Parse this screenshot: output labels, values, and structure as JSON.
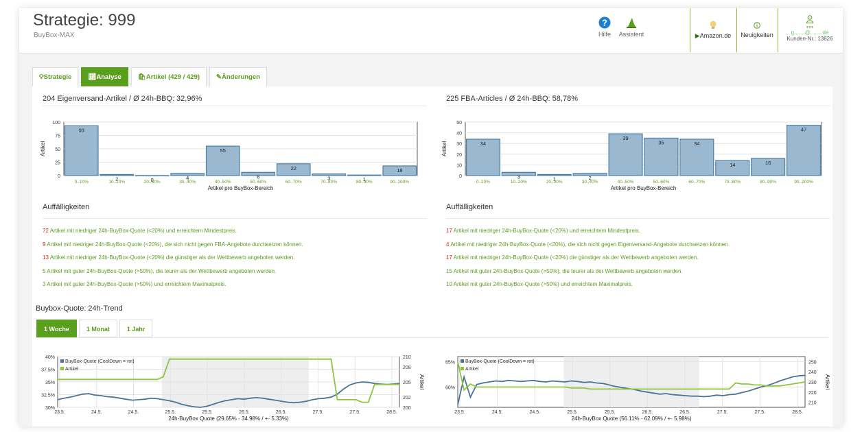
{
  "header": {
    "title": "Strategie: 999",
    "subtitle": "BuyBox-MAX",
    "help_label": "Hilfe",
    "assistant_label": "Assistent",
    "marketplace_label": "Amazon.de",
    "news_label": "Neuigkeiten",
    "user_email": "g.......@........de",
    "customer_label": "Kunden-Nr.: 13826"
  },
  "tabs": [
    "Strategie",
    "Analyse",
    "Artikel (429 / 429)",
    "Änderungen"
  ],
  "left": {
    "heading": "204 Eigenversand-Artikel / Ø 24h-BBQ: 32,96%",
    "issues_heading": "Auffälligkeiten",
    "issues": [
      {
        "num": "72",
        "text": " Artikel mit niedriger 24h-BuyBox-Quote (<20%) und erreichtem Mindestpreis.",
        "red": true
      },
      {
        "num": "9",
        "text": " Artikel mit niedriger 24h-BuyBox-Quote (<20%), die sich nicht gegen FBA-Angebote durchsetzen können.",
        "red": true
      },
      {
        "num": "13",
        "text": " Artikel mit niedriger 24h-BuyBox-Quote (<20%) die günstiger als der Wettbewerb angeboten werden.",
        "red": true
      },
      {
        "num": "5",
        "text": " Artikel mit guter 24h-BuyBox-Quote (>50%), die teurer als der Wettbewerb angeboten werden.",
        "red": false
      },
      {
        "num": "3",
        "text": " Artikel mit guter 24h-BuyBox-Quote (>50%) und erreichtem Maximalpreis.",
        "red": false
      }
    ]
  },
  "right": {
    "heading": "225 FBA-Articles / Ø 24h-BBQ: 58,78%",
    "issues_heading": "Auffälligkeiten",
    "issues": [
      {
        "num": "17",
        "text": " Artikel mit niedriger 24h-BuyBox-Quote (<20%) und erreichtem Mindestpreis.",
        "red": true
      },
      {
        "num": "4",
        "text": " Artikel mit niedriger 24h-BuyBox-Quote (<20%), die sich nicht gegen Eigenversand-Angebote durchsetzen können.",
        "red": true
      },
      {
        "num": "17",
        "text": " Artikel mit niedriger 24h-BuyBox-Quote (<20%) die günstiger als der Wettbewerb angeboten werden.",
        "red": true
      },
      {
        "num": "15",
        "text": " Artikel mit guter 24h-BuyBox-Quote (>50%), die teurer als der Wettbewerb angeboten werden.",
        "red": false
      },
      {
        "num": "10",
        "text": " Artikel mit guter 24h-BuyBox-Quote (>50%) und erreichtem Maximalpreis.",
        "red": false
      }
    ]
  },
  "trend": {
    "heading": "Buybox-Quote: 24h-Trend",
    "ranges": [
      "1 Woche",
      "1 Monat",
      "1 Jahr"
    ],
    "active_range": "1 Woche"
  },
  "colors": {
    "accent": "#5a9e1e",
    "bar_fill": "#9ab9d0",
    "bar_stroke": "#4d7ea3",
    "line_blue": "#4d7396",
    "line_green": "#8cc63f",
    "red": "#d9230f"
  },
  "chart_data": [
    {
      "type": "bar",
      "title": "",
      "xlabel": "Artikel pro BuyBox-Bereich",
      "ylabel": "Artikel",
      "categories": [
        "0..10%",
        "10..20%",
        "20..30%",
        "30..40%",
        "40..50%",
        "50..60%",
        "60..70%",
        "70..80%",
        "80..90%",
        "90..100%"
      ],
      "values": [
        93,
        2,
        0,
        4,
        55,
        6,
        22,
        3,
        1,
        18
      ],
      "ylim": [
        0,
        100
      ],
      "yticks": [
        0,
        25,
        50,
        75,
        100
      ]
    },
    {
      "type": "bar",
      "title": "",
      "xlabel": "Artikel pro BuyBox-Bereich",
      "ylabel": "Artikel",
      "categories": [
        "0..10%",
        "10..20%",
        "20..30%",
        "30..40%",
        "40..50%",
        "50..60%",
        "60..70%",
        "70..80%",
        "80..90%",
        "90..100%"
      ],
      "values": [
        34,
        3,
        1,
        2,
        39,
        35,
        34,
        14,
        16,
        47
      ],
      "ylim": [
        0,
        50
      ],
      "yticks": [
        0,
        10,
        20,
        30,
        40,
        50
      ]
    },
    {
      "type": "line",
      "xlabel": "24h-BuyBox Quote (29.65% - 34.98% / +- 5.33%)",
      "ylabel_right": "Artikel",
      "x_ticks": [
        "23.5.",
        "24.5.",
        "24.5.",
        "25.5.",
        "25.5.",
        "26.5.",
        "26.5.",
        "27.5.",
        "27.5.",
        "28.5."
      ],
      "y_left_ticks": [
        "30%",
        "32.5%",
        "35%",
        "37.5%",
        "40%"
      ],
      "y_left_range": [
        30,
        40
      ],
      "y_right_ticks": [
        "200",
        "202",
        "205",
        "208",
        "210"
      ],
      "y_right_range": [
        200,
        210
      ],
      "series": [
        {
          "name": "BuyBox-Quote (CoolDown = rot)",
          "axis": "left",
          "values": [
            31.5,
            31.8,
            32.0,
            32.3,
            32.6,
            32.7,
            32.4,
            32.3,
            32.1,
            32.0,
            31.8,
            31.6,
            31.4,
            31.5,
            31.6,
            31.8,
            31.7,
            31.5,
            31.3,
            31.0,
            30.6,
            30.3,
            30.1,
            30.0,
            30.2,
            30.6,
            31.0,
            31.3,
            31.5,
            31.7,
            31.6,
            31.8,
            31.9,
            31.8,
            31.6,
            31.4,
            31.2,
            31.0,
            30.9,
            31.0,
            31.2,
            31.5,
            31.7,
            31.8,
            32.0,
            32.6,
            33.6,
            34.4,
            34.8,
            35.0,
            34.9,
            34.7,
            34.6,
            34.5,
            34.6,
            34.7
          ]
        },
        {
          "name": "Artikel",
          "axis": "right",
          "values": [
            205.5,
            205.5,
            205.5,
            205.5,
            205.5,
            205.5,
            205.5,
            205.5,
            205.5,
            205.5,
            205.5,
            205.5,
            205.5,
            205.5,
            205.5,
            205.5,
            205.5,
            206,
            209.5,
            209.5,
            209.5,
            209.5,
            209.5,
            209.5,
            209.5,
            209.5,
            209.5,
            209.5,
            209.5,
            209.5,
            209.5,
            209.5,
            209.5,
            209.5,
            209.5,
            209.5,
            209.5,
            209.5,
            209.5,
            209.5,
            209.5,
            209.5,
            209.5,
            209.5,
            209.5,
            201.5,
            201.5,
            201.5,
            201.5,
            201,
            201,
            204.5,
            204.5,
            204.5,
            204.5,
            204.5
          ]
        }
      ]
    },
    {
      "type": "line",
      "xlabel": "24h-BuyBox Quote (56.11% - 62.09% / +- 5.98%)",
      "ylabel_right": "Artikel",
      "x_ticks": [
        "23.5.",
        "24.5.",
        "24.5.",
        "25.5.",
        "25.5.",
        "26.5.",
        "26.5.",
        "27.5.",
        "27.5.",
        "28.5."
      ],
      "y_left_ticks": [
        "60%",
        "65%"
      ],
      "y_left_range": [
        56,
        66
      ],
      "y_right_ticks": [
        "210",
        "220",
        "230",
        "240",
        "250"
      ],
      "y_right_range": [
        205,
        255
      ],
      "series": [
        {
          "name": "BuyBox-Quote (CoolDown = rot)",
          "axis": "left",
          "values": [
            56.5,
            62.0,
            58.0,
            60.5,
            60.8,
            61.0,
            61.2,
            61.1,
            61.3,
            61.2,
            61.1,
            61.2,
            61.3,
            61.1,
            61.0,
            61.2,
            61.1,
            61.0,
            61.2,
            61.1,
            60.9,
            61.0,
            60.8,
            60.7,
            60.4,
            60.1,
            59.9,
            59.7,
            59.5,
            59.2,
            59.0,
            58.8,
            58.6,
            58.7,
            58.5,
            58.4,
            58.3,
            58.2,
            58.2,
            58.1,
            58.2,
            58.4,
            58.3,
            58.5,
            58.6,
            58.9,
            59.2,
            59.6,
            60.0,
            60.3,
            60.7,
            61.2,
            61.6,
            62.0,
            62.2,
            62.3
          ]
        },
        {
          "name": "Artikel",
          "axis": "right",
          "values": [
            250,
            222,
            228,
            225,
            225,
            225,
            225,
            225,
            225,
            225,
            225,
            225,
            225,
            225,
            225,
            225,
            225,
            225,
            224,
            224,
            224,
            223,
            223,
            223,
            223,
            223,
            223,
            223,
            223,
            223,
            223,
            223,
            223,
            223,
            223,
            223,
            223,
            223,
            223,
            223,
            223,
            223,
            223,
            223,
            229,
            228,
            228,
            227,
            227,
            226,
            226,
            226,
            227,
            228,
            229,
            230
          ]
        }
      ]
    }
  ]
}
